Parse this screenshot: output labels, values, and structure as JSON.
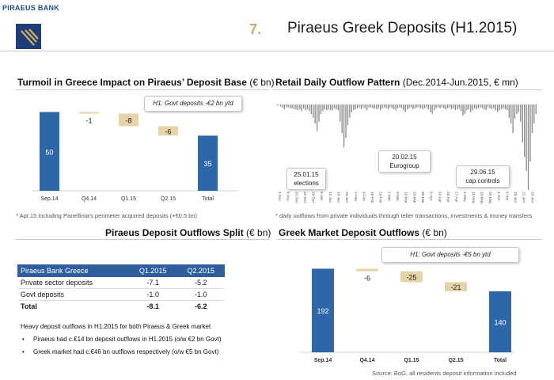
{
  "header": {
    "bank_name": "PIRAEUS BANK",
    "slide_number": "7.",
    "slide_title": "Piraeus Greek Deposits (H1.2015)"
  },
  "colors": {
    "blue": "#2f66a8",
    "tan": "#e6d3a8",
    "gold": "#c9a96e"
  },
  "panel_tl": {
    "title": "Turmoil in Greece Impact on Piraeus’ Deposit Base",
    "unit": "(€ bn)",
    "callout": "H1: Govt deposits -€2 bn ytd",
    "footnote": "* Apr.15 including Panellinia’s perimeter acquired deposits (+€0.5 bn)"
  },
  "panel_tr": {
    "title": "Retail Daily Outflow Pattern",
    "unit": "(Dec.2014-Jun.2015, € mn)",
    "callouts": [
      {
        "date": "25.01.15",
        "label": "elections"
      },
      {
        "date": "20.02.15",
        "label": "Eurogroup"
      },
      {
        "date": "29.06.15",
        "label": "cap.controls"
      }
    ],
    "footnote": "*  daily outflows from private individuals through teller transactions, investments & money transfers"
  },
  "panel_bl": {
    "title": "Piraeus Deposit Outflows Split",
    "unit": "(€ bn)",
    "table": {
      "headers": [
        "Piraeus Bank Greece",
        "Q1.2015",
        "Q2.2015"
      ],
      "rows": [
        [
          "Private sector deposits",
          "-7.1",
          "-5.2"
        ],
        [
          "Govt deposits",
          "-1.0",
          "-1.0"
        ]
      ],
      "total": [
        "Total",
        "-8.1",
        "-6.2"
      ]
    },
    "summary": "Heavy deposit outflows in H1.2015 for both Piraeus & Greek market",
    "bullets": [
      "Piraeus had c.€14 bn deposit outflows in H1.2015 (o/w €2 bn Govt)",
      "Greek market had c.€46 bn outflows respectively (o/w €5 bn Govt)"
    ]
  },
  "panel_br": {
    "title": "Greek Market Deposit Outflows",
    "unit": "(€ bn)",
    "callout": "H1: Govt deposits -€5 bn ytd",
    "source": "Source: BoG, all residents deposit information included"
  },
  "chart_data": [
    {
      "type": "waterfall",
      "categories": [
        "Sep.14",
        "Q4.14",
        "Q1.15",
        "Q2.15",
        "Total"
      ],
      "values": [
        50,
        -1,
        -8,
        -6,
        35
      ],
      "kinds": [
        "total",
        "change",
        "change",
        "change",
        "total"
      ],
      "labels": [
        "50",
        "-1",
        "-8",
        "-6",
        "35"
      ]
    },
    {
      "type": "waterfall",
      "categories": [
        "Sep.14",
        "Q4.14",
        "Q1.15",
        "Q2.15",
        "Total"
      ],
      "values": [
        192,
        -6,
        -25,
        -21,
        140
      ],
      "kinds": [
        "total",
        "change",
        "change",
        "change",
        "total"
      ],
      "labels": [
        "192",
        "-6",
        "-25",
        "-21",
        "140"
      ]
    },
    {
      "type": "bar",
      "xlabels": [
        "1-Dec",
        "8-Dec",
        "15-Dec",
        "22-Dec",
        "29-Dec",
        "5-Jan",
        "12-Jan",
        "19-Jan",
        "26-Jan",
        "2-Feb",
        "9-Feb",
        "16-Feb",
        "23-Feb",
        "2-Mar",
        "9-Mar",
        "16-Mar",
        "23-Mar",
        "30-Mar",
        "6-Apr",
        "13-Apr",
        "20-Apr",
        "27-Apr",
        "4-May",
        "11-May",
        "18-May",
        "25-May",
        "1-Jun",
        "8-Jun",
        "15-Jun",
        "22-Jun",
        "29-Jun"
      ],
      "values": [
        -1,
        -1,
        -2,
        -3,
        -5,
        -3,
        -3,
        -4,
        -4,
        -5,
        -5,
        -6,
        -5,
        -7,
        -4,
        -6,
        -5,
        -7,
        -10,
        -14,
        -20,
        -28,
        -18,
        -10,
        -7,
        -5,
        -6,
        -5,
        -6,
        -6,
        -4,
        -5,
        -6,
        -18,
        -30,
        -45,
        -35,
        -22,
        -14,
        -8,
        -6,
        -5,
        -4,
        -3,
        -5,
        -3,
        -4,
        -6,
        -3,
        -3,
        -4,
        -4,
        -5,
        -4,
        -6,
        -4,
        -3,
        -4,
        -5,
        -3,
        -4,
        -5,
        -6,
        -4,
        -3,
        -4,
        -6,
        -8,
        -5,
        -4,
        -3,
        -5,
        -4,
        -3,
        -3,
        -4,
        -5,
        -4,
        -3,
        -5,
        -8,
        -10,
        -6,
        -4,
        -3,
        -4,
        -3,
        -4,
        -5,
        -4,
        -3,
        -5,
        -4,
        -6,
        -5,
        -4,
        -7,
        -12,
        -10,
        -6,
        -5,
        -8,
        -6,
        -4,
        -5,
        -4,
        -3,
        -4,
        -5,
        -6,
        -3,
        -4,
        -5,
        -4,
        -6,
        -8,
        -6,
        -5,
        -4,
        -5,
        -6,
        -14,
        -20,
        -30,
        -15,
        -10,
        -8,
        -18,
        -40,
        -55,
        -70,
        -90,
        -60,
        -30,
        -20,
        -10
      ],
      "grid": false
    }
  ]
}
